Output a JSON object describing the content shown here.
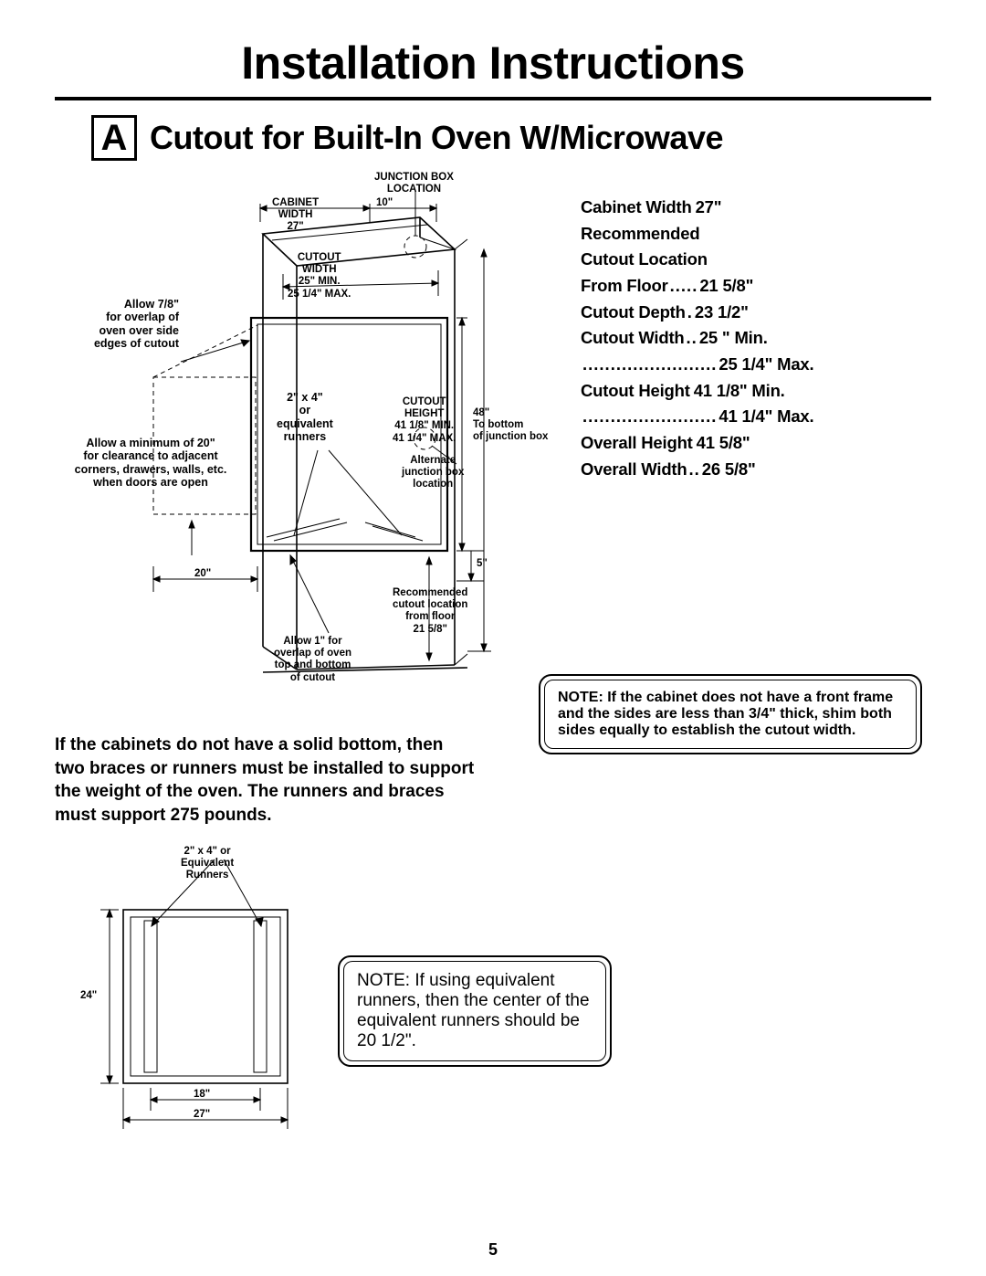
{
  "page": {
    "title": "Installation Instructions",
    "step_letter": "A",
    "subtitle": "Cutout for Built-In Oven W/Microwave",
    "page_number": "5",
    "colors": {
      "text": "#000000",
      "bg": "#ffffff",
      "line": "#000000"
    },
    "fonts": {
      "title_pt": 50,
      "subtitle_pt": 36,
      "body_pt": 19,
      "label_pt": 12.5
    }
  },
  "diagram_main": {
    "type": "diagram",
    "labels": {
      "junction_box": "JUNCTION BOX\nLOCATION",
      "cabinet_width": "CABINET\nWIDTH\n27\"",
      "ten_in": "10\"",
      "cutout_width": "CUTOUT\nWIDTH\n25\" MIN.\n25 1/4\" MAX.",
      "allow_78": "Allow 7/8\"\nfor overlap of\noven over side\nedges of cutout",
      "two_by_four": "2\" x 4\"\nor\nequivalent\nrunners",
      "cutout_height": "CUTOUT\nHEIGHT\n41 1/8\" MIN.\n41 1/4\" MAX.",
      "forty_eight": "48\"\nTo bottom\nof junction box",
      "alt_junction": "Alternate\njunction box\nlocation",
      "allow_min_20": "Allow a minimum of 20\"\nfor clearance to adjacent\ncorners, drawers, walls, etc.\nwhen doors are open",
      "twenty_in": "20\"",
      "five_in": "5\"",
      "rec_cutout_loc": "Recommended\ncutout location\nfrom floor\n21 5/8\"",
      "allow_1": "Allow 1\" for\noverlap of oven\ntop and bottom\nof cutout"
    }
  },
  "specs": [
    {
      "label": "Cabinet Width",
      "dots": "  ",
      "value": "27\""
    },
    {
      "label": "Recommended",
      "dots": "",
      "value": ""
    },
    {
      "label": "Cutout Location",
      "dots": "",
      "value": ""
    },
    {
      "label": "From Floor",
      "dots": " ..... ",
      "value": "21 5/8\""
    },
    {
      "label": "Cutout Depth",
      "dots": " . ",
      "value": "23 1/2\""
    },
    {
      "label": "Cutout Width",
      "dots": " .. ",
      "value": "25 \" Min."
    },
    {
      "label": " ",
      "dots": "........................ ",
      "value": "25 1/4\" Max."
    },
    {
      "label": "Cutout Height",
      "dots": "  ",
      "value": "41 1/8\"  Min."
    },
    {
      "label": " ",
      "dots": "........................ ",
      "value": "41 1/4\" Max."
    },
    {
      "label": "Overall Height",
      "dots": "  ",
      "value": "41 5/8\""
    },
    {
      "label": "Overall Width",
      "dots": ".. ",
      "value": "26 5/8\""
    }
  ],
  "braces_paragraph": "If the cabinets do not have a solid bottom, then two braces or runners must be installed to support the weight of the oven. The runners and braces must support 275 pounds.",
  "note1": "NOTE: If the cabinet does not have a front frame and the sides are less than 3/4\" thick, shim both sides equally to establish the cutout width.",
  "diagram_runners": {
    "type": "diagram",
    "labels": {
      "runners": "2\" x 4\" or\nEquivalent\nRunners",
      "h24": "24\"",
      "w18": "18\"",
      "w27": "27\""
    }
  },
  "note2": "NOTE: If using equivalent runners, then the center of the equivalent runners should be 20 1/2\"."
}
